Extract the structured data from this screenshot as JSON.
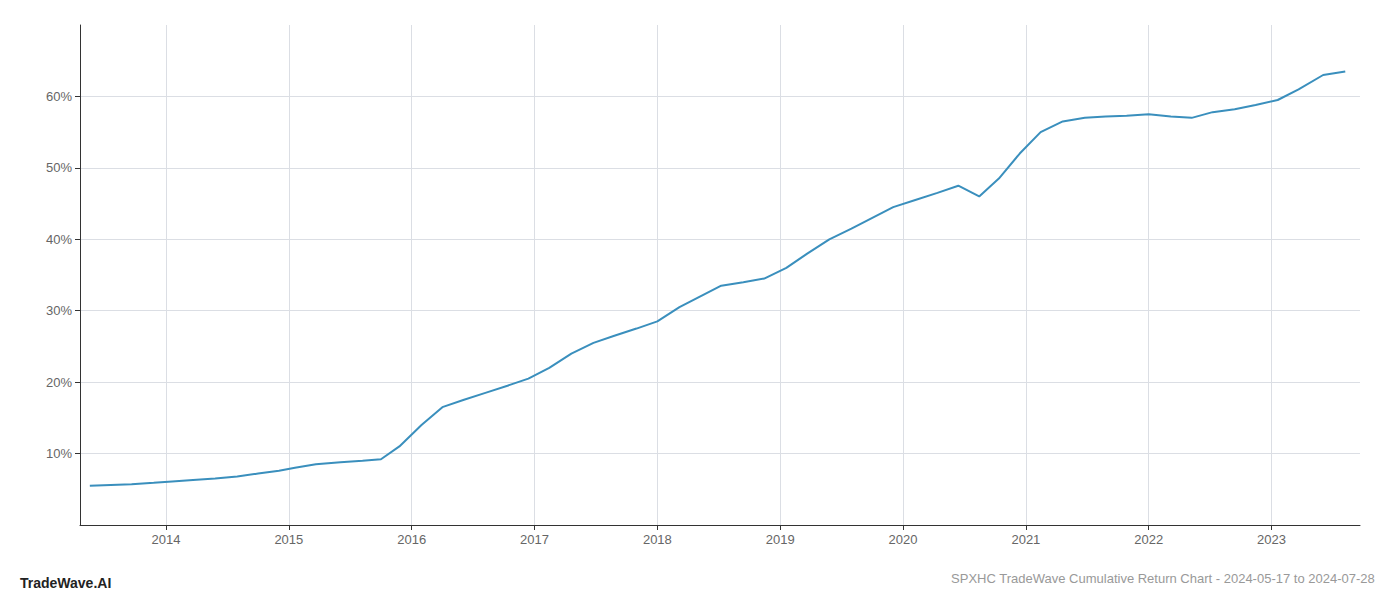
{
  "chart_data": {
    "type": "line",
    "title": "SPXHC TradeWave Cumulative Return Chart - 2024-05-17 to 2024-07-28",
    "annotations": [
      "TradeWave.AI"
    ],
    "color": "#3a8fbd",
    "grid": true,
    "x": [
      2013.38,
      2013.55,
      2013.72,
      2013.9,
      2014.05,
      2014.22,
      2014.4,
      2014.58,
      2014.75,
      2014.92,
      2015.05,
      2015.22,
      2015.42,
      2015.6,
      2015.75,
      2015.9,
      2016.08,
      2016.25,
      2016.42,
      2016.6,
      2016.78,
      2016.95,
      2017.12,
      2017.3,
      2017.48,
      2017.65,
      2017.83,
      2018.0,
      2018.18,
      2018.35,
      2018.52,
      2018.7,
      2018.87,
      2019.05,
      2019.22,
      2019.4,
      2019.58,
      2019.75,
      2019.92,
      2020.1,
      2020.28,
      2020.45,
      2020.62,
      2020.78,
      2020.95,
      2021.12,
      2021.3,
      2021.48,
      2021.65,
      2021.82,
      2022.0,
      2022.18,
      2022.35,
      2022.52,
      2022.7,
      2022.87,
      2023.05,
      2023.22,
      2023.42,
      2023.6
    ],
    "values": [
      5.5,
      5.6,
      5.7,
      5.9,
      6.1,
      6.3,
      6.5,
      6.8,
      7.2,
      7.6,
      8.0,
      8.5,
      8.8,
      9.0,
      9.2,
      11.0,
      14.0,
      16.5,
      17.5,
      18.5,
      19.5,
      20.5,
      22.0,
      24.0,
      25.5,
      26.5,
      27.5,
      28.5,
      30.5,
      32.0,
      33.5,
      34.0,
      34.5,
      36.0,
      38.0,
      40.0,
      41.5,
      43.0,
      44.5,
      45.5,
      46.5,
      47.5,
      46.0,
      48.5,
      52.0,
      55.0,
      56.5,
      57.0,
      57.2,
      57.3,
      57.5,
      57.2,
      57.0,
      57.8,
      58.2,
      58.8,
      59.5,
      61.0,
      63.0,
      63.5
    ],
    "xlim": [
      2013.3,
      2023.72
    ],
    "xticks": [
      2014,
      2015,
      2016,
      2017,
      2018,
      2019,
      2020,
      2021,
      2022,
      2023
    ],
    "ylim": [
      0,
      70
    ],
    "yticks": [
      {
        "value": 10,
        "label": "10%"
      },
      {
        "value": 20,
        "label": "20%"
      },
      {
        "value": 30,
        "label": "30%"
      },
      {
        "value": 40,
        "label": "40%"
      },
      {
        "value": 50,
        "label": "50%"
      },
      {
        "value": 60,
        "label": "60%"
      }
    ]
  }
}
